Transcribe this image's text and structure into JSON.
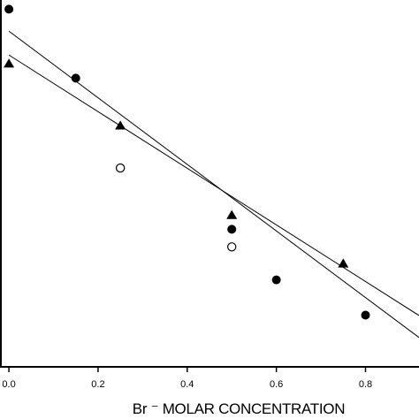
{
  "chart_data": {
    "type": "scatter",
    "title": "",
    "xlabel": "Br ⁻ MOLAR CONCENTRATION",
    "ylabel": "",
    "xlim": [
      -0.02,
      0.92
    ],
    "ylim": [
      0,
      1
    ],
    "grid": false,
    "legend": "none",
    "x_ticks": [
      0.0,
      0.2,
      0.4,
      0.6,
      0.8
    ],
    "x_tick_labels": [
      "0.0",
      "0.2",
      "0.4",
      "0.6",
      "0.8"
    ],
    "series": [
      {
        "marker": "filled-circle",
        "color": "#000000",
        "points": [
          [
            0.0,
            0.975
          ],
          [
            0.15,
            0.787
          ],
          [
            0.5,
            0.375
          ],
          [
            0.6,
            0.237
          ],
          [
            0.8,
            0.141
          ]
        ]
      },
      {
        "marker": "filled-triangle",
        "color": "#000000",
        "points": [
          [
            0.0,
            0.826
          ],
          [
            0.25,
            0.657
          ],
          [
            0.5,
            0.413
          ],
          [
            0.75,
            0.281
          ]
        ]
      },
      {
        "marker": "open-circle",
        "color": "#000000",
        "points": [
          [
            0.25,
            0.542
          ],
          [
            0.5,
            0.327
          ]
        ]
      }
    ],
    "fit_lines": [
      {
        "x": [
          0.0,
          0.92
        ],
        "y": [
          0.915,
          0.08
        ]
      },
      {
        "x": [
          0.0,
          0.92
        ],
        "y": [
          0.85,
          0.14
        ]
      }
    ]
  }
}
